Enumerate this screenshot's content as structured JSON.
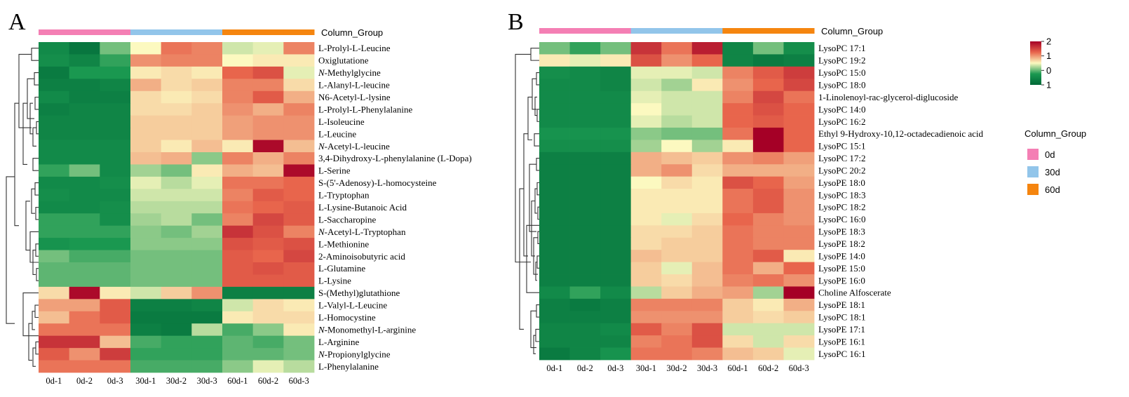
{
  "colors": {
    "group_0d": "#f47fb4",
    "group_30d": "#92c5ea",
    "group_60d": "#f5850f",
    "scale_low": "#006837",
    "scale_mid": "#fcf9c0",
    "scale_high": "#a50026"
  },
  "legend": {
    "scale_ticks": [
      "2",
      "1",
      "0",
      "1"
    ],
    "title": "Column_Group",
    "items": [
      "0d",
      "30d",
      "60d"
    ]
  },
  "chart_data": [
    {
      "panel": "A",
      "type": "heatmap",
      "column_group_label": "Column_Group",
      "columns": [
        "0d-1",
        "0d-2",
        "0d-3",
        "30d-1",
        "30d-2",
        "30d-3",
        "60d-1",
        "60d-2",
        "60d-3"
      ],
      "column_groups": [
        "0d",
        "0d",
        "0d",
        "30d",
        "30d",
        "30d",
        "60d",
        "60d",
        "60d"
      ],
      "rows": [
        "L-Prolyl-L-Leucine",
        "Oxiglutatione",
        "N-Methylglycine",
        "L-Alanyl-L-leucine",
        "N6-Acetyl-L-lysine",
        "L-Prolyl-L-Phenylalanine",
        "L-Isoleucine",
        "L-Leucine",
        "N-Acetyl-L-leucine",
        "3,4-Dihydroxy-L-phenylalanine  (L-Dopa)",
        "L-Serine",
        "S-(5'-Adenosy)-L-homocysteine",
        "L-Tryptophan",
        "L-Lysine-Butanoic  Acid",
        "L-Saccharopine",
        "N-Acetyl-L-Tryptophan",
        "L-Methionine",
        "2-Aminoisobutyric  acid",
        "L-Glutamine",
        "L-Lysine",
        "S-(Methyl)glutathione",
        "L-Valyl-L-Leucine",
        "L-Homocystine",
        "N-Monomethyl-L-arginine",
        "L-Arginine",
        "N-Propionylglycine",
        "L-Phenylalanine"
      ],
      "italic_prefix_rows": [
        2,
        8,
        15,
        23,
        25
      ],
      "values": [
        [
          -1.3,
          -1.7,
          -0.6,
          0.0,
          0.9,
          0.8,
          -0.2,
          -0.1,
          0.8
        ],
        [
          -1.2,
          -1.4,
          -0.9,
          0.7,
          0.8,
          0.8,
          0.0,
          0.1,
          0.1
        ],
        [
          -1.6,
          -1.0,
          -1.0,
          0.1,
          0.2,
          0.1,
          1.0,
          1.2,
          -0.1
        ],
        [
          -1.5,
          -1.5,
          -1.4,
          0.5,
          0.2,
          0.3,
          0.8,
          0.8,
          0.2
        ],
        [
          -1.3,
          -1.5,
          -1.5,
          0.2,
          0.1,
          0.2,
          0.8,
          1.1,
          0.5
        ],
        [
          -1.5,
          -1.4,
          -1.4,
          0.2,
          0.2,
          0.3,
          0.7,
          0.5,
          0.8
        ],
        [
          -1.4,
          -1.4,
          -1.4,
          0.3,
          0.3,
          0.3,
          0.6,
          0.7,
          0.7
        ],
        [
          -1.4,
          -1.4,
          -1.4,
          0.3,
          0.3,
          0.3,
          0.6,
          0.7,
          0.7
        ],
        [
          -1.3,
          -1.3,
          -1.3,
          0.3,
          0.1,
          0.4,
          0.1,
          1.9,
          0.4
        ],
        [
          -1.3,
          -1.3,
          -1.3,
          0.4,
          0.5,
          -0.5,
          0.8,
          0.5,
          0.8
        ],
        [
          -0.9,
          -0.6,
          -1.3,
          -0.4,
          -0.6,
          0.1,
          0.5,
          0.4,
          1.9
        ],
        [
          -1.3,
          -1.3,
          -1.2,
          -0.1,
          -0.3,
          -0.1,
          0.9,
          0.9,
          1.0
        ],
        [
          -1.2,
          -1.3,
          -1.3,
          -0.2,
          -0.2,
          -0.2,
          0.8,
          1.1,
          1.0
        ],
        [
          -1.3,
          -1.3,
          -1.2,
          -0.3,
          -0.3,
          -0.3,
          0.9,
          1.0,
          1.1
        ],
        [
          -0.9,
          -0.9,
          -1.2,
          -0.4,
          -0.3,
          -0.6,
          0.8,
          1.3,
          1.1
        ],
        [
          -0.9,
          -0.9,
          -0.9,
          -0.5,
          -0.6,
          -0.4,
          1.5,
          1.2,
          0.8
        ],
        [
          -1.1,
          -1.0,
          -1.0,
          -0.5,
          -0.5,
          -0.5,
          1.2,
          1.1,
          1.2
        ],
        [
          -0.6,
          -0.8,
          -0.8,
          -0.6,
          -0.6,
          -0.6,
          1.1,
          1.0,
          1.3
        ],
        [
          -0.7,
          -0.7,
          -0.7,
          -0.6,
          -0.6,
          -0.6,
          1.1,
          1.2,
          1.1
        ],
        [
          -0.7,
          -0.7,
          -0.7,
          -0.6,
          -0.6,
          -0.6,
          1.1,
          1.1,
          1.1
        ],
        [
          0.2,
          1.9,
          0.1,
          -0.2,
          0.3,
          0.7,
          -1.5,
          -1.5,
          -1.5
        ],
        [
          0.6,
          0.6,
          1.1,
          -1.5,
          -1.5,
          -1.4,
          -0.2,
          0.2,
          0.1
        ],
        [
          0.4,
          0.9,
          1.1,
          -1.6,
          -1.6,
          -1.6,
          0.1,
          0.2,
          0.2
        ],
        [
          0.9,
          0.9,
          0.9,
          -1.5,
          -1.6,
          -0.3,
          -0.8,
          -0.5,
          0.1
        ],
        [
          1.5,
          1.5,
          0.4,
          -0.8,
          -0.9,
          -0.9,
          -0.7,
          -0.8,
          -0.6
        ],
        [
          1.1,
          0.7,
          1.4,
          -0.9,
          -0.9,
          -0.9,
          -0.7,
          -0.7,
          -0.6
        ],
        [
          0.9,
          0.9,
          0.9,
          -0.8,
          -0.8,
          -0.8,
          -0.5,
          -0.1,
          -0.3
        ]
      ]
    },
    {
      "panel": "B",
      "type": "heatmap",
      "column_group_label": "Column_Group",
      "columns": [
        "0d-1",
        "0d-2",
        "0d-3",
        "30d-1",
        "30d-2",
        "30d-3",
        "60d-1",
        "60d-2",
        "60d-3"
      ],
      "column_groups": [
        "0d",
        "0d",
        "0d",
        "30d",
        "30d",
        "30d",
        "60d",
        "60d",
        "60d"
      ],
      "rows": [
        "LysoPC  17:1",
        "LysoPC  19:2",
        "LysoPC  15:0",
        "LysoPC  18:0",
        "1-Linolenoyl-rac-glycerol-diglucoside",
        "LysoPC  14:0",
        "LysoPC  16:2",
        "Ethyl  9-Hydroxy-10,12-octadecadienoic  acid",
        "LysoPC  15:1",
        "LysoPC  17:2",
        "LysoPC  20:2",
        "LysoPE  18:0",
        "LysoPC  18:3",
        "LysoPC  18:2",
        "LysoPC  16:0",
        "LysoPE  18:3",
        "LysoPE  18:2",
        "LysoPE  14:0",
        "LysoPE  15:0",
        "LysoPE  16:0",
        "Choline  Alfoscerate",
        "LysoPE  18:1",
        "LysoPC  18:1",
        "LysoPE  17:1",
        "LysoPE  16:1",
        "LysoPC  16:1"
      ],
      "values": [
        [
          -0.6,
          -0.9,
          -0.6,
          1.5,
          0.9,
          1.7,
          -1.4,
          -0.6,
          -1.2
        ],
        [
          0.1,
          -0.1,
          0.1,
          1.2,
          0.7,
          1.0,
          -1.4,
          -1.6,
          -1.5
        ],
        [
          -1.2,
          -1.3,
          -1.4,
          -0.1,
          -0.1,
          -0.2,
          0.8,
          1.1,
          1.4
        ],
        [
          -1.3,
          -1.3,
          -1.4,
          -0.2,
          -0.4,
          0.1,
          0.7,
          1.0,
          1.3
        ],
        [
          -1.3,
          -1.3,
          -1.3,
          -0.1,
          -0.2,
          -0.2,
          0.8,
          1.3,
          0.9
        ],
        [
          -1.3,
          -1.3,
          -1.3,
          0.0,
          -0.2,
          -0.2,
          1.0,
          1.2,
          1.0
        ],
        [
          -1.3,
          -1.3,
          -1.3,
          -0.1,
          -0.3,
          -0.2,
          1.0,
          1.1,
          1.0
        ],
        [
          -1.1,
          -1.1,
          -1.1,
          -0.5,
          -0.6,
          -0.6,
          0.9,
          2.0,
          1.0
        ],
        [
          -1.2,
          -1.2,
          -1.2,
          -0.4,
          0.0,
          -0.4,
          0.1,
          2.0,
          1.0
        ],
        [
          -1.5,
          -1.5,
          -1.5,
          0.5,
          0.4,
          0.3,
          0.7,
          0.8,
          0.6
        ],
        [
          -1.5,
          -1.5,
          -1.5,
          0.5,
          0.7,
          0.2,
          0.5,
          0.5,
          0.5
        ],
        [
          -1.5,
          -1.5,
          -1.5,
          0.0,
          0.2,
          0.1,
          1.2,
          1.0,
          0.6
        ],
        [
          -1.5,
          -1.5,
          -1.5,
          0.1,
          0.1,
          0.1,
          0.9,
          1.1,
          0.7
        ],
        [
          -1.5,
          -1.5,
          -1.5,
          0.1,
          0.1,
          0.1,
          0.9,
          1.1,
          0.7
        ],
        [
          -1.5,
          -1.5,
          -1.5,
          0.1,
          -0.1,
          0.2,
          1.0,
          0.8,
          0.7
        ],
        [
          -1.5,
          -1.5,
          -1.5,
          0.2,
          0.2,
          0.3,
          0.9,
          0.8,
          0.8
        ],
        [
          -1.5,
          -1.5,
          -1.5,
          0.2,
          0.3,
          0.3,
          0.9,
          0.8,
          0.8
        ],
        [
          -1.5,
          -1.5,
          -1.5,
          0.4,
          0.3,
          0.3,
          0.9,
          1.1,
          0.1
        ],
        [
          -1.5,
          -1.5,
          -1.5,
          0.3,
          -0.1,
          0.4,
          0.9,
          0.5,
          1.0
        ],
        [
          -1.5,
          -1.5,
          -1.5,
          0.3,
          0.2,
          0.4,
          0.8,
          0.9,
          0.7
        ],
        [
          -1.3,
          -0.9,
          -1.3,
          -0.3,
          0.3,
          0.5,
          0.6,
          -0.4,
          2.0
        ],
        [
          -1.5,
          -1.6,
          -1.5,
          0.8,
          0.8,
          0.8,
          0.3,
          0.1,
          0.5
        ],
        [
          -1.5,
          -1.5,
          -1.5,
          0.7,
          0.7,
          0.7,
          0.3,
          0.2,
          0.3
        ],
        [
          -1.4,
          -1.4,
          -1.3,
          1.1,
          0.8,
          1.2,
          -0.2,
          -0.2,
          -0.2
        ],
        [
          -1.4,
          -1.4,
          -1.4,
          0.8,
          0.9,
          1.2,
          0.2,
          -0.2,
          0.2
        ],
        [
          -1.6,
          -1.4,
          -1.1,
          0.9,
          0.9,
          0.8,
          0.4,
          0.3,
          -0.1
        ]
      ]
    }
  ]
}
